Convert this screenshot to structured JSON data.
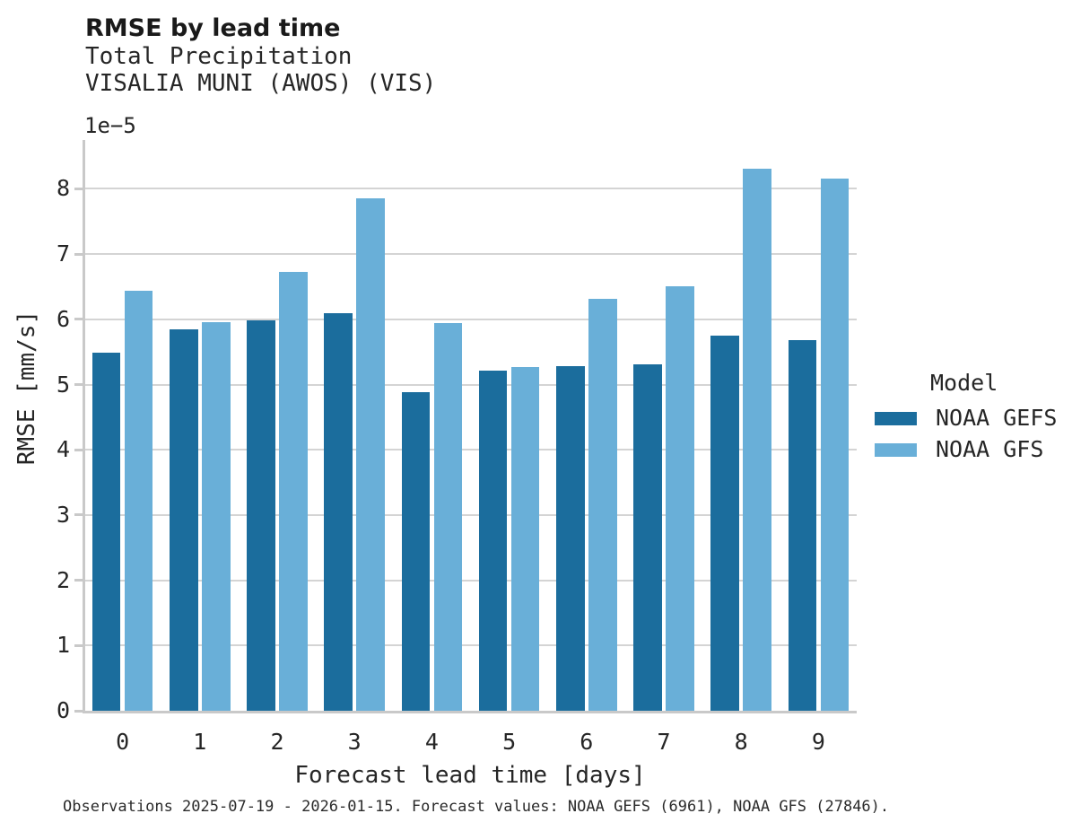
{
  "header": {
    "title": "RMSE by lead time",
    "subtitle_line1": "Total Precipitation",
    "subtitle_line2": "VISALIA MUNI (AWOS) (VIS)"
  },
  "chart_data": {
    "type": "bar",
    "title": "RMSE by lead time",
    "subtitle": [
      "Total Precipitation",
      "VISALIA MUNI (AWOS) (VIS)"
    ],
    "categories": [
      "0",
      "1",
      "2",
      "3",
      "4",
      "5",
      "6",
      "7",
      "8",
      "9"
    ],
    "series": [
      {
        "name": "NOAA GEFS",
        "color": "#1b6d9d",
        "values": [
          5.49,
          5.85,
          5.99,
          6.1,
          4.88,
          5.22,
          5.28,
          5.31,
          5.75,
          5.68
        ]
      },
      {
        "name": "NOAA GFS",
        "color": "#69afd8",
        "values": [
          6.44,
          5.96,
          6.73,
          7.85,
          5.94,
          5.27,
          6.32,
          6.51,
          8.31,
          8.16
        ]
      }
    ],
    "value_unit": "1e-5 mm/s",
    "offset_text": "1e−5",
    "xlabel": "Forecast lead time [days]",
    "ylabel": "RMSE [mm/s]",
    "ylim": [
      0,
      8.75
    ],
    "yticks": [
      0,
      1,
      2,
      3,
      4,
      5,
      6,
      7,
      8
    ],
    "grid": "horizontal",
    "legend_title": "Model",
    "legend_position": "right"
  },
  "footer": {
    "text": "Observations 2025-07-19 - 2026-01-15. Forecast values: NOAA GEFS (6961), NOAA GFS (27846)."
  },
  "colors": {
    "grid": "#d4d4d4",
    "axis": "#c9c9c9",
    "text": "#262626"
  }
}
